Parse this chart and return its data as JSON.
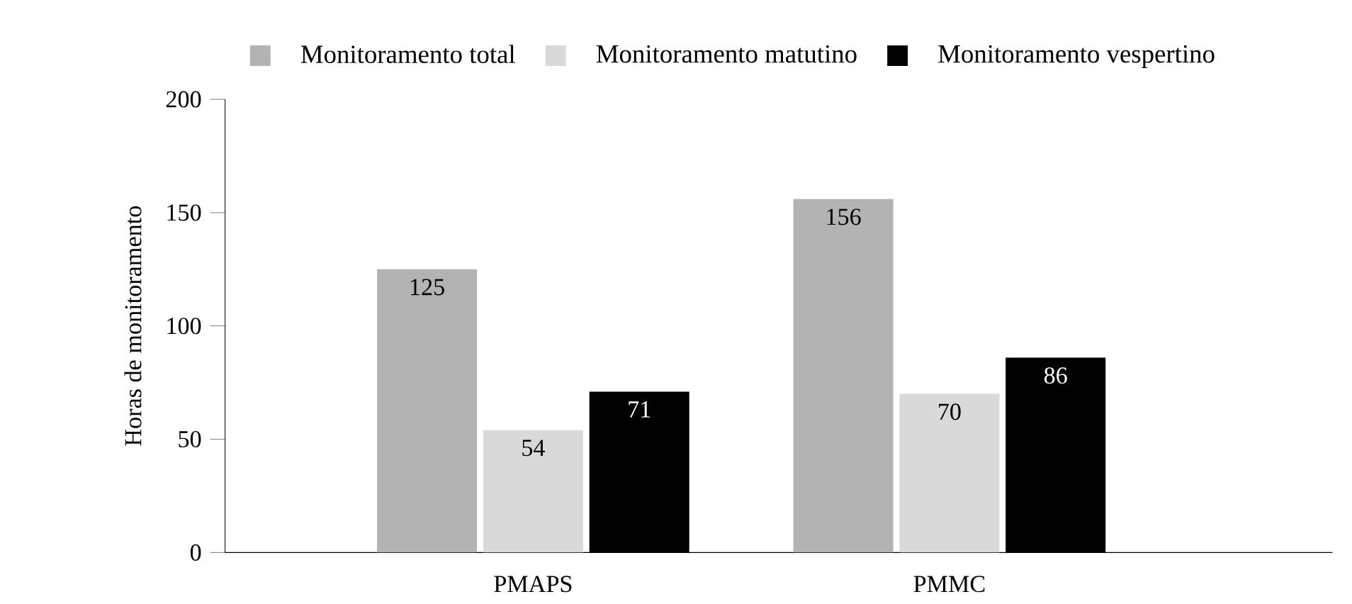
{
  "chart_data": {
    "type": "bar",
    "ylabel": "Horas de monitoramento",
    "categories": [
      "PMAPS",
      "PMMC"
    ],
    "series": [
      {
        "name": "Monitoramento total",
        "color": "#b3b3b3",
        "values": [
          125,
          156
        ]
      },
      {
        "name": "Monitoramento matutino",
        "color": "#d9d9d9",
        "values": [
          54,
          70
        ]
      },
      {
        "name": "Monitoramento vespertino",
        "color": "#000000",
        "values": [
          71,
          86
        ]
      }
    ],
    "ylim": [
      0,
      200
    ],
    "yticks": [
      0,
      50,
      100,
      150,
      200
    ],
    "data_labels": true,
    "legend": "top"
  }
}
